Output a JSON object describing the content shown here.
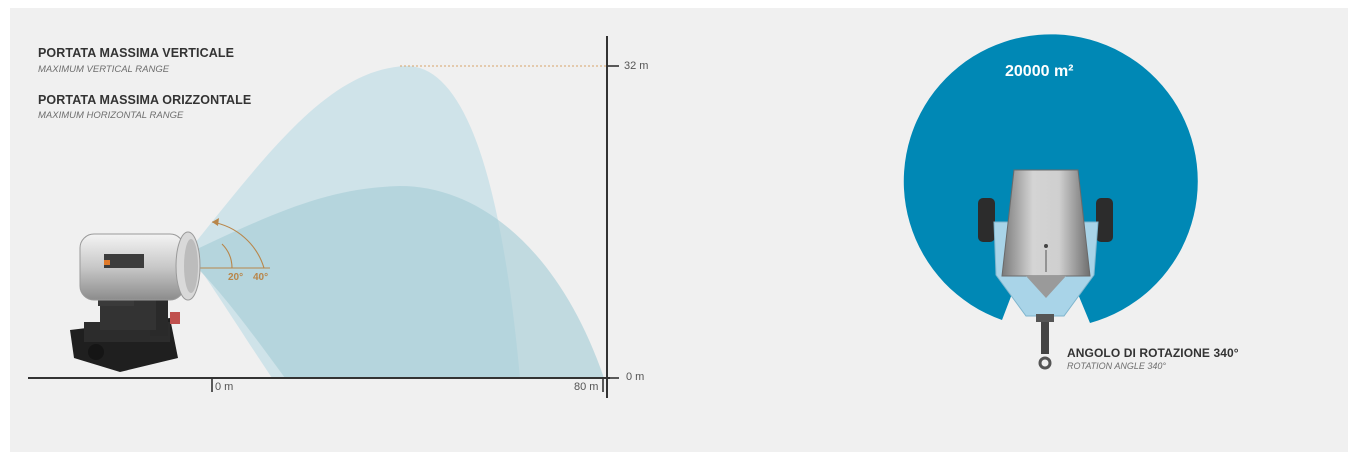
{
  "range_diagram": {
    "vertical_label": "PORTATA MASSIMA VERTICALE",
    "vertical_sub": "MAXIMUM VERTICAL RANGE",
    "horizontal_label": "PORTATA MASSIMA ORIZZONTALE",
    "horizontal_sub": "MAXIMUM HORIZONTAL RANGE",
    "y_axis": {
      "top_label": "32 m",
      "bottom_label": "0 m"
    },
    "x_axis": {
      "start_label": "0 m",
      "end_label": "80 m"
    },
    "angle_low": "20°",
    "angle_high": "40°",
    "colors": {
      "spray_high": "#c9e0e8",
      "spray_low": "#a8ced7",
      "angle_arc": "#b8864a",
      "guide": "#d7a46a",
      "axis": "#333333"
    }
  },
  "rotation_diagram": {
    "area_label": "20000 m²",
    "angle_label": "ANGOLO DI ROTAZIONE 340°",
    "angle_sub": "ROTATION ANGLE 340°",
    "colors": {
      "coverage": "#0088b5",
      "frame": "#a9d4e8",
      "body": "#b0b0b0"
    }
  }
}
